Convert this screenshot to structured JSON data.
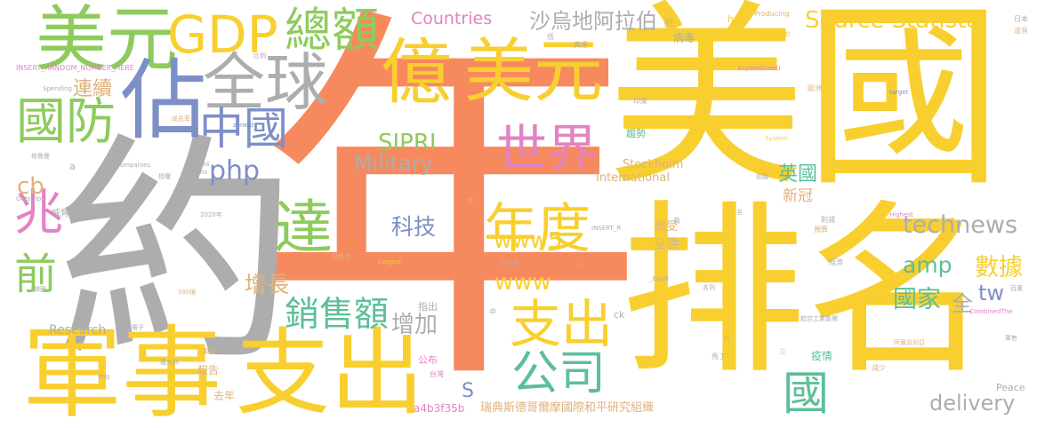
{
  "words": [
    {
      "text": "年",
      "color": "#f7895e"
    },
    {
      "text": "美國",
      "color": "#f8cf2f"
    },
    {
      "text": "排名",
      "color": "#f8cf2f"
    },
    {
      "text": "約",
      "color": "#adadad"
    },
    {
      "text": "軍事",
      "color": "#f8cf2f"
    },
    {
      "text": "支出",
      "color": "#f8cf2f"
    },
    {
      "text": "美元",
      "color": "#8ecb5d"
    },
    {
      "text": "GDP",
      "color": "#f8cf2f"
    },
    {
      "text": "總額",
      "color": "#8ecb5d"
    },
    {
      "text": "佔",
      "color": "#7d8fc7"
    },
    {
      "text": "全球",
      "color": "#adadad"
    },
    {
      "text": "億",
      "color": "#f8cf2f"
    },
    {
      "text": "美元",
      "color": "#f8cf2f"
    },
    {
      "text": "國防",
      "color": "#8ecb5d"
    },
    {
      "text": "連續",
      "color": "#dfb27c"
    },
    {
      "text": "中國",
      "color": "#7d8fc7"
    },
    {
      "text": "php",
      "color": "#7d8fc7"
    },
    {
      "text": "Military",
      "color": "#adadad"
    },
    {
      "text": "SIPRI",
      "color": "#8ecb5d"
    },
    {
      "text": "世界",
      "color": "#e283c3"
    },
    {
      "text": "達",
      "color": "#8ecb5d"
    },
    {
      "text": "年度",
      "color": "#f8cf2f"
    },
    {
      "text": "www5",
      "color": "#f8cf2f"
    },
    {
      "text": "科技",
      "color": "#7d8fc7"
    },
    {
      "text": "www",
      "color": "#f8cf2f"
    },
    {
      "text": "增長",
      "color": "#dfb27c"
    },
    {
      "text": "銷售額",
      "color": "#5cbf98"
    },
    {
      "text": "增加",
      "color": "#adadad"
    },
    {
      "text": "支出",
      "color": "#f8cf2f"
    },
    {
      "text": "公司",
      "color": "#5cbf98"
    },
    {
      "text": "兆",
      "color": "#e283c3"
    },
    {
      "text": "前",
      "color": "#8ecb5d"
    },
    {
      "text": "cb",
      "color": "#dfb27c"
    },
    {
      "text": "國",
      "color": "#5cbf98"
    },
    {
      "text": "英國",
      "color": "#5cbf98"
    },
    {
      "text": "新冠",
      "color": "#dfb27c"
    },
    {
      "text": "technews",
      "color": "#adadad"
    },
    {
      "text": "amp",
      "color": "#5cbf98"
    },
    {
      "text": "數據",
      "color": "#f8cf2f"
    },
    {
      "text": "國家",
      "color": "#5cbf98"
    },
    {
      "text": "全",
      "color": "#adadad"
    },
    {
      "text": "tw",
      "color": "#7d8fc7"
    },
    {
      "text": "delivery",
      "color": "#adadad"
    },
    {
      "text": "Source Statista",
      "color": "#f8cf2f"
    },
    {
      "text": "Countries",
      "color": "#e283c3"
    },
    {
      "text": "沙烏地阿拉伯",
      "color": "#adadad"
    },
    {
      "text": "Research",
      "color": "#adadad"
    },
    {
      "text": "International",
      "color": "#dfb27c"
    },
    {
      "text": "Stockholm",
      "color": "#dfb27c"
    },
    {
      "text": "S",
      "color": "#7d8fc7"
    },
    {
      "text": "a4b3f35b",
      "color": "#e283c3"
    },
    {
      "text": "瑞典斯德哥爾摩國際和平研究組織",
      "color": "#dfb27c"
    },
    {
      "text": "Institute",
      "color": "#f8cf2f"
    },
    {
      "text": "href",
      "color": "#f8cf2f"
    },
    {
      "text": "Producing",
      "color": "#dfb27c"
    },
    {
      "text": "病毒",
      "color": "#adadad"
    },
    {
      "text": "新",
      "color": "#dfb27c"
    },
    {
      "text": "趨勢",
      "color": "#5cbf98"
    },
    {
      "text": "飽受",
      "color": "#dfb27c"
    },
    {
      "text": "呈現",
      "color": "#dfb27c"
    },
    {
      "text": "公布",
      "color": "#e283c3"
    },
    {
      "text": "指出",
      "color": "#adadad"
    },
    {
      "text": "報告",
      "color": "#dfb27c"
    },
    {
      "text": "去年",
      "color": "#dfb27c"
    },
    {
      "text": "疫情",
      "color": "#5cbf98"
    },
    {
      "text": "Peace",
      "color": "#adadad"
    },
    {
      "text": "ck",
      "color": "#adadad"
    },
    {
      "text": "n",
      "color": "#adadad"
    },
    {
      "text": "a",
      "color": "#adadad"
    },
    {
      "text": "INSERT_RANDOM_NUMBER_HERE",
      "color": "#e283c3"
    },
    {
      "text": "target",
      "color": "#7d8fc7"
    },
    {
      "text": "ExpenditureU",
      "color": "#e283c3"
    },
    {
      "text": "System",
      "color": "#f8cf2f"
    },
    {
      "text": "Highest",
      "color": "#e283c3"
    },
    {
      "text": "CombinedThe",
      "color": "#e283c3"
    },
    {
      "text": "Spending",
      "color": "#adadad"
    },
    {
      "text": "zoneid",
      "color": "#7d8fc7"
    },
    {
      "text": "Companies",
      "color": "#adadad"
    },
    {
      "text": "World",
      "color": "#adadad"
    },
    {
      "text": "Arms",
      "color": "#adadad"
    },
    {
      "text": "Outstrips",
      "color": "#adadad"
    },
    {
      "text": "INSERT_R",
      "color": "#adadad"
    },
    {
      "text": "Largest",
      "color": "#f8cf2f"
    },
    {
      "text": "_blank",
      "color": "#adadad"
    },
    {
      "text": "BAE",
      "color": "#adadad"
    },
    {
      "text": "img",
      "color": "#adadad"
    },
    {
      "text": "日本",
      "color": "#adadad"
    },
    {
      "text": "波音",
      "color": "#dfb27c"
    },
    {
      "text": "低",
      "color": "#adadad"
    },
    {
      "text": "高達",
      "color": "#adadad"
    },
    {
      "text": "比例",
      "color": "#adadad"
    },
    {
      "text": "印度",
      "color": "#adadad"
    },
    {
      "text": "歐洲",
      "color": "#dfb27c"
    },
    {
      "text": "削減",
      "color": "#adadad"
    },
    {
      "text": "預算",
      "color": "#dfb27c"
    },
    {
      "text": "經濟",
      "color": "#adadad"
    },
    {
      "text": "台灣",
      "color": "#e283c3"
    },
    {
      "text": "義大利",
      "color": "#adadad"
    },
    {
      "text": "韓國",
      "color": "#adadad"
    },
    {
      "text": "電子",
      "color": "#adadad"
    },
    {
      "text": "集團",
      "color": "#dfb27c"
    },
    {
      "text": "馬丁",
      "color": "#adadad"
    },
    {
      "text": "減少",
      "color": "#dfb27c"
    },
    {
      "text": "德國",
      "color": "#adadad"
    },
    {
      "text": "高",
      "color": "#adadad"
    },
    {
      "text": "名",
      "color": "#adadad"
    },
    {
      "text": "二",
      "color": "#adadad"
    },
    {
      "text": "三",
      "color": "#dfb27c"
    },
    {
      "text": "八",
      "color": "#adadad"
    },
    {
      "text": "中",
      "color": "#adadad"
    },
    {
      "text": "千",
      "color": "#dfb27c"
    },
    {
      "text": "百萬",
      "color": "#adadad"
    },
    {
      "text": "軍售",
      "color": "#adadad"
    },
    {
      "text": "名列",
      "color": "#adadad"
    },
    {
      "text": "580億",
      "color": "#dfb27c"
    },
    {
      "text": "航空工業集團",
      "color": "#adadad"
    },
    {
      "text": "阿爾及利亞",
      "color": "#dfb27c"
    },
    {
      "text": "格魯曼",
      "color": "#adadad"
    },
    {
      "text": "授權",
      "color": "#adadad"
    },
    {
      "text": "威脅",
      "color": "#adadad"
    },
    {
      "text": "2020年",
      "color": "#adadad"
    },
    {
      "text": "新台幣",
      "color": "#adadad"
    },
    {
      "text": "供應商",
      "color": "#dfb27c"
    },
    {
      "text": "成長率",
      "color": "#dfb27c"
    }
  ]
}
